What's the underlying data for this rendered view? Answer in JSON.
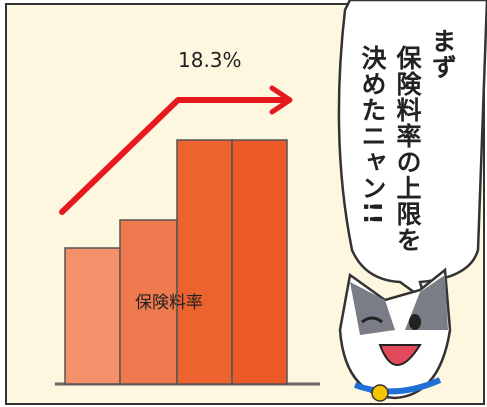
{
  "panel": {
    "arrow_label": "18.3%",
    "bar_label": "保険料率",
    "speech": [
      "まず",
      "保険料率の上限を",
      "決めたニャン!!"
    ]
  }
}
